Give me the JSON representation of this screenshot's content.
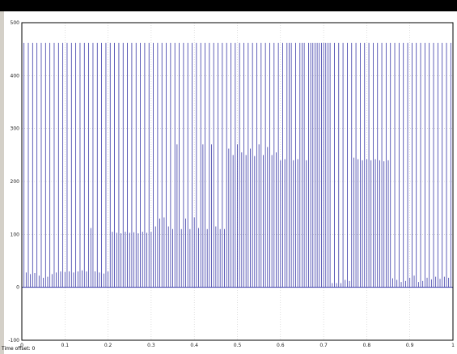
{
  "colors": {
    "background": "#ffffff",
    "plot_background": "#ffffff",
    "trace": "#3a3aa8",
    "grid": "#c8c8c8",
    "titlebar": "#000000"
  },
  "status": {
    "offset_text": "Time offset: 0"
  },
  "chart_data": {
    "type": "line",
    "title": "",
    "xlabel": "",
    "ylabel": "",
    "xlim": [
      0,
      1
    ],
    "ylim": [
      -100,
      500
    ],
    "xticks": [
      "0",
      "0.1",
      "0.2",
      "0.3",
      "0.4",
      "0.5",
      "0.6",
      "0.7",
      "0.8",
      "0.9",
      "1"
    ],
    "yticks": [
      "500",
      "400",
      "300",
      "200",
      "100",
      "0",
      "-100"
    ],
    "grid": true,
    "baseline": 0,
    "spike_height": 462,
    "spike_times": [
      0.005,
      0.015,
      0.025,
      0.035,
      0.045,
      0.055,
      0.065,
      0.075,
      0.085,
      0.095,
      0.105,
      0.115,
      0.125,
      0.135,
      0.145,
      0.155,
      0.165,
      0.175,
      0.185,
      0.195,
      0.205,
      0.215,
      0.225,
      0.235,
      0.245,
      0.255,
      0.265,
      0.275,
      0.285,
      0.295,
      0.305,
      0.315,
      0.325,
      0.335,
      0.345,
      0.355,
      0.365,
      0.375,
      0.385,
      0.395,
      0.405,
      0.415,
      0.425,
      0.435,
      0.445,
      0.455,
      0.465,
      0.475,
      0.485,
      0.495,
      0.505,
      0.515,
      0.525,
      0.535,
      0.545,
      0.555,
      0.565,
      0.575,
      0.585,
      0.595,
      0.605,
      0.615,
      0.625,
      0.635,
      0.645,
      0.655,
      0.665,
      0.675,
      0.685,
      0.695,
      0.705,
      0.715,
      0.725,
      0.735,
      0.745,
      0.755,
      0.765,
      0.775,
      0.785,
      0.795,
      0.805,
      0.815,
      0.825,
      0.835,
      0.845,
      0.855,
      0.865,
      0.875,
      0.885,
      0.895,
      0.905,
      0.915,
      0.925,
      0.935,
      0.945,
      0.955,
      0.965,
      0.975,
      0.985,
      0.995
    ],
    "mid_times": [
      0.0,
      0.01,
      0.02,
      0.03,
      0.04,
      0.05,
      0.06,
      0.07,
      0.08,
      0.09,
      0.1,
      0.11,
      0.12,
      0.13,
      0.14,
      0.15,
      0.16,
      0.17,
      0.18,
      0.19,
      0.2,
      0.21,
      0.22,
      0.23,
      0.24,
      0.25,
      0.26,
      0.27,
      0.28,
      0.29,
      0.3,
      0.31,
      0.32,
      0.33,
      0.34,
      0.35,
      0.36,
      0.37,
      0.38,
      0.39,
      0.4,
      0.41,
      0.42,
      0.43,
      0.44,
      0.45,
      0.46,
      0.47,
      0.48,
      0.49,
      0.5,
      0.51,
      0.52,
      0.53,
      0.54,
      0.55,
      0.56,
      0.57,
      0.58,
      0.59,
      0.6,
      0.61,
      0.62,
      0.63,
      0.64,
      0.65,
      0.66,
      0.67,
      0.68,
      0.69,
      0.7,
      0.71,
      0.72,
      0.73,
      0.74,
      0.75,
      0.76,
      0.77,
      0.78,
      0.79,
      0.8,
      0.81,
      0.82,
      0.83,
      0.84,
      0.85,
      0.86,
      0.87,
      0.88,
      0.89,
      0.9,
      0.91,
      0.92,
      0.93,
      0.94,
      0.95,
      0.96,
      0.97,
      0.98,
      0.99
    ],
    "mid_values": [
      30,
      28,
      25,
      27,
      22,
      18,
      20,
      25,
      28,
      30,
      29,
      30,
      28,
      30,
      32,
      30,
      112,
      30,
      28,
      26,
      30,
      105,
      103,
      102,
      105,
      103,
      104,
      102,
      105,
      103,
      105,
      115,
      130,
      132,
      115,
      110,
      270,
      110,
      130,
      110,
      132,
      112,
      270,
      110,
      270,
      115,
      110,
      110,
      262,
      250,
      270,
      255,
      250,
      262,
      248,
      270,
      250,
      265,
      250,
      255,
      240,
      242,
      462,
      240,
      242,
      462,
      240,
      462,
      462,
      462,
      462,
      462,
      8,
      8,
      8,
      14,
      12,
      245,
      242,
      240,
      242,
      240,
      242,
      240,
      238,
      240,
      17,
      14,
      10,
      12,
      18,
      22,
      10,
      12,
      18,
      15,
      20,
      16,
      20,
      18
    ]
  }
}
